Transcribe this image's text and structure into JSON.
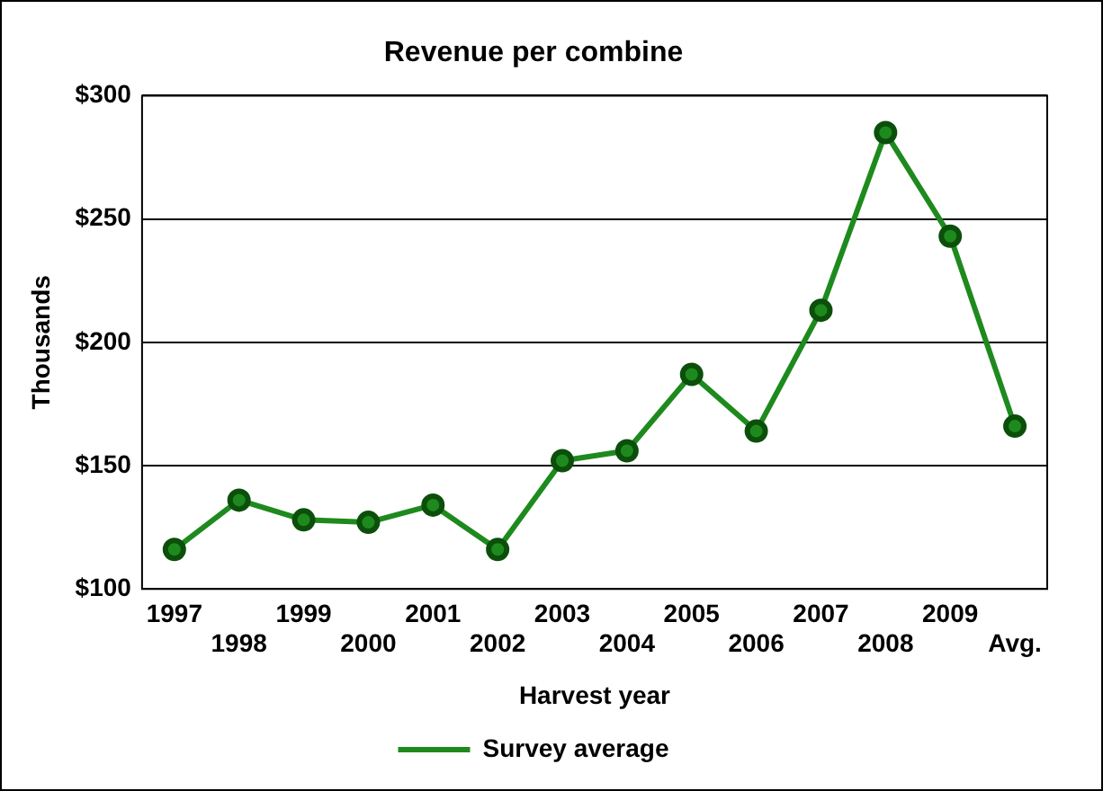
{
  "chart_data": {
    "type": "line",
    "title": "Revenue per combine",
    "xlabel": "Harvest year",
    "ylabel": "Thousands",
    "categories": [
      "1997",
      "1998",
      "1999",
      "2000",
      "2001",
      "2002",
      "2003",
      "2004",
      "2005",
      "2006",
      "2007",
      "2008",
      "2009",
      "Avg."
    ],
    "series": [
      {
        "name": "Survey average",
        "color": "#1e8a1e",
        "values": [
          116,
          136,
          128,
          127,
          134,
          116,
          152,
          156,
          187,
          164,
          213,
          285,
          243,
          166
        ]
      }
    ],
    "ylim": [
      100,
      300
    ],
    "yticks": [
      {
        "value": 100,
        "label": "$100"
      },
      {
        "value": 150,
        "label": "$150"
      },
      {
        "value": 200,
        "label": "$200"
      },
      {
        "value": 250,
        "label": "$250"
      },
      {
        "value": 300,
        "label": "$300"
      }
    ],
    "grid": "y",
    "legend": "bottom",
    "marker": "circle",
    "line_style": "solid"
  }
}
